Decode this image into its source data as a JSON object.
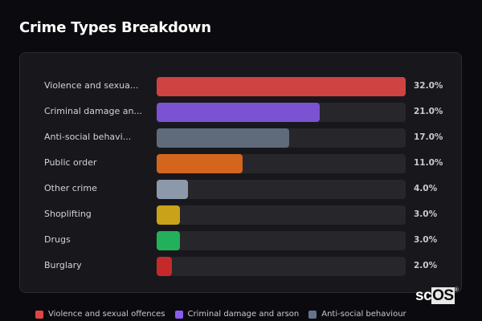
{
  "header": {
    "title": "Crime Types Breakdown"
  },
  "rows": [
    {
      "label": "Violence and sexua...",
      "value": "32.0%",
      "pct": 32.0,
      "color": "#cf4343"
    },
    {
      "label": "Criminal damage an...",
      "value": "21.0%",
      "pct": 21.0,
      "color": "#7b52d1"
    },
    {
      "label": "Anti-social behavi...",
      "value": "17.0%",
      "pct": 17.0,
      "color": "#5f6b7a"
    },
    {
      "label": "Public order",
      "value": "11.0%",
      "pct": 11.0,
      "color": "#d4651c"
    },
    {
      "label": "Other crime",
      "value": "4.0%",
      "pct": 4.0,
      "color": "#8c99ab"
    },
    {
      "label": "Shoplifting",
      "value": "3.0%",
      "pct": 3.0,
      "color": "#c9a21a"
    },
    {
      "label": "Drugs",
      "value": "3.0%",
      "pct": 3.0,
      "color": "#23b05a"
    },
    {
      "label": "Burglary",
      "value": "2.0%",
      "pct": 2.0,
      "color": "#c42a2a"
    }
  ],
  "legend": [
    {
      "label": "Violence and sexual offences",
      "color": "#e04545"
    },
    {
      "label": "Criminal damage and arson",
      "color": "#8b5cf0"
    },
    {
      "label": "Anti-social behaviour",
      "color": "#64748b"
    }
  ],
  "watermark": {
    "prefix": "sc",
    "boxed": "OS",
    "mark": "®"
  },
  "chart_data": {
    "type": "bar",
    "orientation": "horizontal",
    "title": "Crime Types Breakdown",
    "categories": [
      "Violence and sexual offences",
      "Criminal damage and arson",
      "Anti-social behaviour",
      "Public order",
      "Other crime",
      "Shoplifting",
      "Drugs",
      "Burglary"
    ],
    "values": [
      32.0,
      21.0,
      17.0,
      11.0,
      4.0,
      3.0,
      3.0,
      2.0
    ],
    "unit": "%",
    "xlabel": "",
    "ylabel": "",
    "xlim": [
      0,
      32
    ],
    "grid": false,
    "legend_position": "bottom",
    "legend": [
      "Violence and sexual offences",
      "Criminal damage and arson",
      "Anti-social behaviour"
    ]
  }
}
